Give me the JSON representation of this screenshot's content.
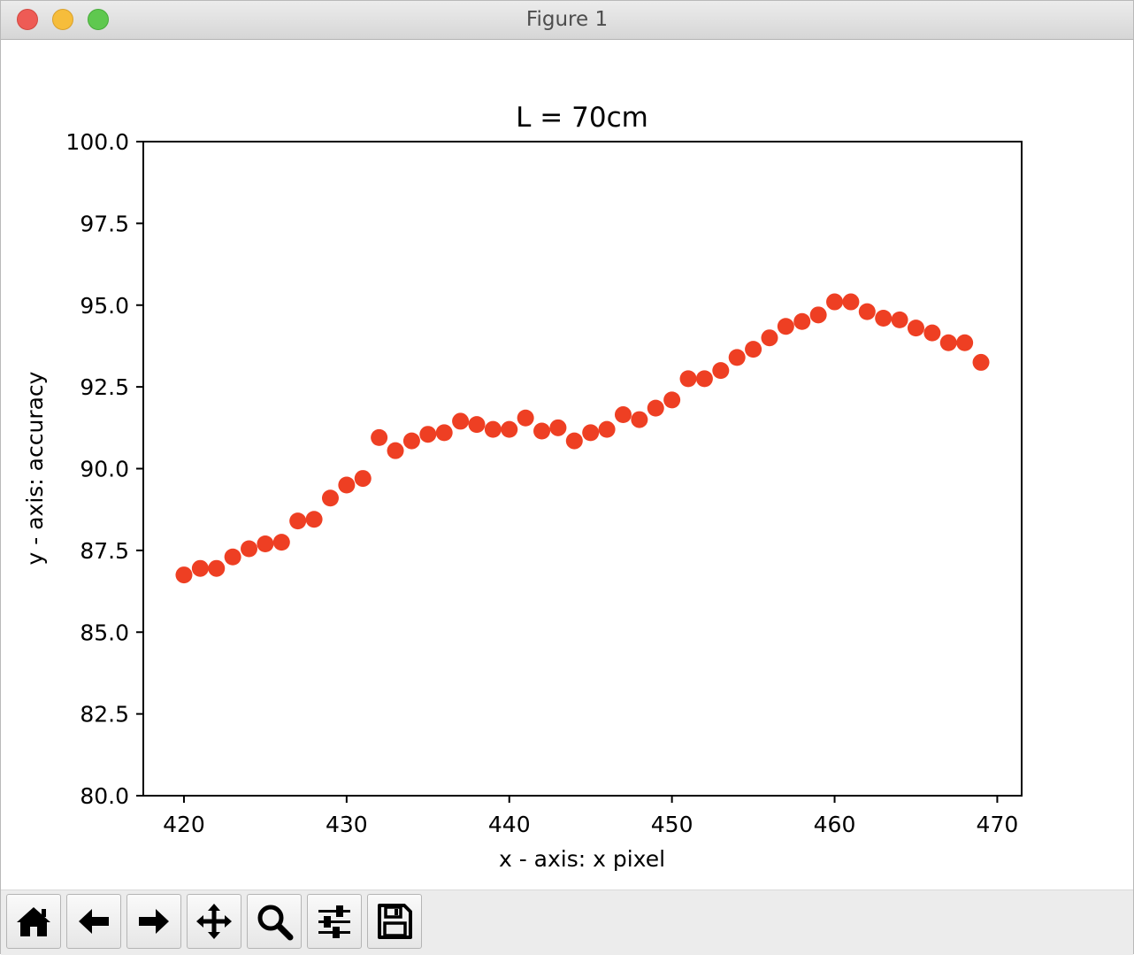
{
  "window": {
    "title": "Figure 1"
  },
  "toolbar": {
    "buttons": [
      {
        "icon": "home-icon"
      },
      {
        "icon": "back-arrow-icon"
      },
      {
        "icon": "forward-arrow-icon"
      },
      {
        "icon": "pan-move-icon"
      },
      {
        "icon": "zoom-magnifier-icon"
      },
      {
        "icon": "subplots-sliders-icon"
      },
      {
        "icon": "save-floppy-icon"
      }
    ]
  },
  "chart_data": {
    "type": "scatter",
    "title": "L = 70cm",
    "xlabel": "x - axis: x pixel",
    "ylabel": "y - axis: accuracy",
    "xlim": [
      417.5,
      471.5
    ],
    "ylim": [
      80.0,
      100.0
    ],
    "xticks": [
      420,
      430,
      440,
      450,
      460,
      470
    ],
    "xtick_labels": [
      "420",
      "430",
      "440",
      "450",
      "460",
      "470"
    ],
    "yticks": [
      80.0,
      82.5,
      85.0,
      87.5,
      90.0,
      92.5,
      95.0,
      97.5,
      100.0
    ],
    "ytick_labels": [
      "80.0",
      "82.5",
      "85.0",
      "87.5",
      "90.0",
      "92.5",
      "95.0",
      "97.5",
      "100.0"
    ],
    "grid": false,
    "marker_color": "#ee3f23",
    "x": [
      420,
      421,
      422,
      423,
      424,
      425,
      426,
      427,
      428,
      429,
      430,
      431,
      432,
      433,
      434,
      435,
      436,
      437,
      438,
      439,
      440,
      441,
      442,
      443,
      444,
      445,
      446,
      447,
      448,
      449,
      450,
      451,
      452,
      453,
      454,
      455,
      456,
      457,
      458,
      459,
      460,
      461,
      462,
      463,
      464,
      465,
      466,
      467,
      468,
      469
    ],
    "y": [
      86.75,
      86.95,
      86.95,
      87.3,
      87.55,
      87.7,
      87.75,
      88.4,
      88.45,
      89.1,
      89.5,
      89.7,
      90.95,
      90.55,
      90.85,
      91.05,
      91.1,
      91.45,
      91.35,
      91.2,
      91.2,
      91.55,
      91.15,
      91.25,
      90.85,
      91.1,
      91.2,
      91.65,
      91.5,
      91.85,
      92.1,
      92.75,
      92.75,
      93.0,
      93.4,
      93.65,
      94.0,
      94.35,
      94.5,
      94.7,
      95.1,
      95.1,
      94.8,
      94.6,
      94.55,
      94.3,
      94.15,
      93.85,
      93.85,
      93.25
    ]
  }
}
